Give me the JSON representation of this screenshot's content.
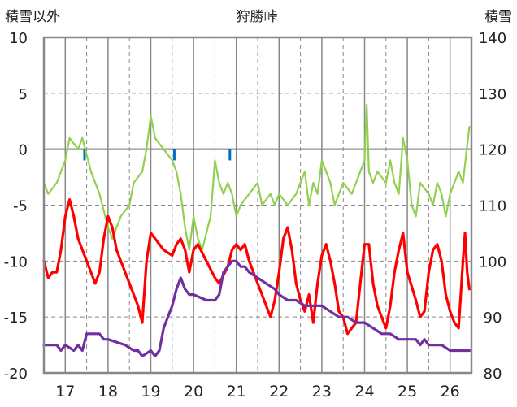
{
  "chart_data": {
    "type": "line",
    "title": "狩勝峠",
    "left_axis_label": "積雪以外",
    "right_axis_label": "積雪",
    "ylim_left": [
      -20,
      10
    ],
    "ylim_right": [
      80,
      140
    ],
    "left_ticks": [
      "10",
      "5",
      "0",
      "-5",
      "-10",
      "-15",
      "-20"
    ],
    "right_ticks": [
      "140",
      "130",
      "120",
      "110",
      "100",
      "90",
      "80"
    ],
    "x_labels": [
      "17",
      "18",
      "19",
      "20",
      "21",
      "22",
      "23",
      "24",
      "25",
      "26"
    ],
    "xlim": [
      16.5,
      26.5
    ],
    "grid": true,
    "colors": {
      "temperature": "#ff0000",
      "green_series": "#92d050",
      "snow_depth": "#7030a0",
      "bars": "#0070c0",
      "grid": "#888888",
      "frame": "#888888",
      "zero_line": "#777777"
    },
    "series": [
      {
        "key": "green",
        "axis": "left",
        "color": "#92d050",
        "points": [
          [
            16.5,
            -3
          ],
          [
            16.6,
            -4
          ],
          [
            16.8,
            -3
          ],
          [
            16.9,
            -2
          ],
          [
            17.0,
            -1
          ],
          [
            17.1,
            1
          ],
          [
            17.3,
            0
          ],
          [
            17.4,
            1
          ],
          [
            17.6,
            -2
          ],
          [
            17.8,
            -4
          ],
          [
            18.0,
            -7
          ],
          [
            18.1,
            -8
          ],
          [
            18.2,
            -7
          ],
          [
            18.3,
            -6
          ],
          [
            18.5,
            -5
          ],
          [
            18.6,
            -3
          ],
          [
            18.8,
            -2
          ],
          [
            18.9,
            0
          ],
          [
            19.0,
            3
          ],
          [
            19.1,
            1
          ],
          [
            19.3,
            0
          ],
          [
            19.5,
            -1
          ],
          [
            19.6,
            -2
          ],
          [
            19.7,
            -4
          ],
          [
            19.8,
            -7
          ],
          [
            19.9,
            -9
          ],
          [
            20.0,
            -6
          ],
          [
            20.1,
            -8
          ],
          [
            20.2,
            -9
          ],
          [
            20.4,
            -6
          ],
          [
            20.5,
            -1
          ],
          [
            20.6,
            -3
          ],
          [
            20.7,
            -4
          ],
          [
            20.8,
            -3
          ],
          [
            20.9,
            -4
          ],
          [
            21.0,
            -6
          ],
          [
            21.1,
            -5
          ],
          [
            21.3,
            -4
          ],
          [
            21.5,
            -3
          ],
          [
            21.6,
            -5
          ],
          [
            21.8,
            -4
          ],
          [
            21.9,
            -5
          ],
          [
            22.0,
            -4
          ],
          [
            22.2,
            -5
          ],
          [
            22.4,
            -4
          ],
          [
            22.5,
            -3
          ],
          [
            22.6,
            -2
          ],
          [
            22.7,
            -5
          ],
          [
            22.8,
            -3
          ],
          [
            22.9,
            -4
          ],
          [
            23.0,
            -1
          ],
          [
            23.1,
            -2
          ],
          [
            23.2,
            -3
          ],
          [
            23.3,
            -5
          ],
          [
            23.5,
            -3
          ],
          [
            23.7,
            -4
          ],
          [
            23.8,
            -3
          ],
          [
            23.9,
            -2
          ],
          [
            24.0,
            -1
          ],
          [
            24.05,
            4
          ],
          [
            24.1,
            -2
          ],
          [
            24.2,
            -3
          ],
          [
            24.3,
            -2
          ],
          [
            24.5,
            -3
          ],
          [
            24.6,
            -1
          ],
          [
            24.7,
            -3
          ],
          [
            24.8,
            -4
          ],
          [
            24.9,
            1
          ],
          [
            25.0,
            -1
          ],
          [
            25.1,
            -5
          ],
          [
            25.2,
            -6
          ],
          [
            25.3,
            -3
          ],
          [
            25.5,
            -4
          ],
          [
            25.6,
            -5
          ],
          [
            25.7,
            -3
          ],
          [
            25.8,
            -4
          ],
          [
            25.9,
            -6
          ],
          [
            26.0,
            -4
          ],
          [
            26.1,
            -3
          ],
          [
            26.2,
            -2
          ],
          [
            26.3,
            -3
          ],
          [
            26.45,
            2
          ]
        ]
      },
      {
        "key": "temperature",
        "axis": "left",
        "color": "#ff0000",
        "points": [
          [
            16.5,
            -10
          ],
          [
            16.6,
            -11.5
          ],
          [
            16.7,
            -11
          ],
          [
            16.8,
            -11
          ],
          [
            16.9,
            -9
          ],
          [
            17.0,
            -6
          ],
          [
            17.1,
            -4.5
          ],
          [
            17.2,
            -6
          ],
          [
            17.3,
            -8
          ],
          [
            17.5,
            -10
          ],
          [
            17.6,
            -11
          ],
          [
            17.7,
            -12
          ],
          [
            17.8,
            -11
          ],
          [
            17.9,
            -8
          ],
          [
            18.0,
            -6
          ],
          [
            18.1,
            -7
          ],
          [
            18.2,
            -9
          ],
          [
            18.4,
            -11
          ],
          [
            18.6,
            -13
          ],
          [
            18.7,
            -14
          ],
          [
            18.8,
            -15.5
          ],
          [
            18.9,
            -10
          ],
          [
            19.0,
            -7.5
          ],
          [
            19.1,
            -8
          ],
          [
            19.3,
            -9
          ],
          [
            19.5,
            -9.5
          ],
          [
            19.6,
            -8.5
          ],
          [
            19.7,
            -8
          ],
          [
            19.8,
            -9
          ],
          [
            19.9,
            -11
          ],
          [
            20.0,
            -9
          ],
          [
            20.1,
            -8.5
          ],
          [
            20.3,
            -10
          ],
          [
            20.5,
            -11.5
          ],
          [
            20.6,
            -12
          ],
          [
            20.8,
            -10.5
          ],
          [
            20.9,
            -9
          ],
          [
            21.0,
            -8.5
          ],
          [
            21.1,
            -9
          ],
          [
            21.2,
            -8.5
          ],
          [
            21.3,
            -10
          ],
          [
            21.5,
            -12
          ],
          [
            21.6,
            -13
          ],
          [
            21.7,
            -14
          ],
          [
            21.8,
            -15
          ],
          [
            21.9,
            -13.5
          ],
          [
            22.0,
            -11
          ],
          [
            22.1,
            -8
          ],
          [
            22.2,
            -7
          ],
          [
            22.3,
            -9
          ],
          [
            22.4,
            -12
          ],
          [
            22.5,
            -13.5
          ],
          [
            22.6,
            -14.5
          ],
          [
            22.7,
            -13
          ],
          [
            22.8,
            -15.5
          ],
          [
            22.9,
            -12
          ],
          [
            23.0,
            -9.5
          ],
          [
            23.1,
            -8.5
          ],
          [
            23.2,
            -10
          ],
          [
            23.3,
            -12
          ],
          [
            23.4,
            -14.5
          ],
          [
            23.5,
            -15
          ],
          [
            23.6,
            -16.5
          ],
          [
            23.7,
            -16
          ],
          [
            23.8,
            -15.5
          ],
          [
            23.9,
            -12
          ],
          [
            24.0,
            -8.5
          ],
          [
            24.1,
            -8.5
          ],
          [
            24.2,
            -12
          ],
          [
            24.3,
            -14
          ],
          [
            24.4,
            -15
          ],
          [
            24.5,
            -16
          ],
          [
            24.6,
            -14
          ],
          [
            24.7,
            -11
          ],
          [
            24.8,
            -9
          ],
          [
            24.9,
            -7.5
          ],
          [
            25.0,
            -11
          ],
          [
            25.2,
            -13.5
          ],
          [
            25.3,
            -15
          ],
          [
            25.4,
            -14.5
          ],
          [
            25.5,
            -11
          ],
          [
            25.6,
            -9
          ],
          [
            25.7,
            -8.5
          ],
          [
            25.8,
            -10
          ],
          [
            25.9,
            -13
          ],
          [
            26.0,
            -14.5
          ],
          [
            26.1,
            -15.5
          ],
          [
            26.2,
            -16
          ],
          [
            26.3,
            -10
          ],
          [
            26.35,
            -7.5
          ],
          [
            26.4,
            -11
          ],
          [
            26.45,
            -12.5
          ]
        ]
      },
      {
        "key": "snow_depth",
        "axis": "right",
        "color": "#7030a0",
        "points": [
          [
            16.5,
            85
          ],
          [
            16.8,
            85
          ],
          [
            16.9,
            84
          ],
          [
            17.0,
            85
          ],
          [
            17.2,
            84
          ],
          [
            17.3,
            85
          ],
          [
            17.4,
            84
          ],
          [
            17.5,
            87
          ],
          [
            17.8,
            87
          ],
          [
            17.9,
            86
          ],
          [
            18.0,
            86
          ],
          [
            18.4,
            85
          ],
          [
            18.6,
            84
          ],
          [
            18.7,
            84
          ],
          [
            18.8,
            83
          ],
          [
            19.0,
            84
          ],
          [
            19.1,
            83
          ],
          [
            19.2,
            84
          ],
          [
            19.3,
            88
          ],
          [
            19.4,
            90
          ],
          [
            19.5,
            92
          ],
          [
            19.6,
            95
          ],
          [
            19.7,
            97
          ],
          [
            19.8,
            95
          ],
          [
            19.9,
            94
          ],
          [
            20.0,
            94
          ],
          [
            20.3,
            93
          ],
          [
            20.5,
            93
          ],
          [
            20.6,
            94
          ],
          [
            20.7,
            98
          ],
          [
            20.8,
            99
          ],
          [
            20.9,
            100
          ],
          [
            21.0,
            100
          ],
          [
            21.1,
            99
          ],
          [
            21.2,
            99
          ],
          [
            21.3,
            98
          ],
          [
            21.5,
            97
          ],
          [
            21.7,
            96
          ],
          [
            21.9,
            95
          ],
          [
            22.0,
            94
          ],
          [
            22.2,
            93
          ],
          [
            22.4,
            93
          ],
          [
            22.6,
            92
          ],
          [
            22.8,
            92
          ],
          [
            23.0,
            92
          ],
          [
            23.2,
            91
          ],
          [
            23.4,
            90
          ],
          [
            23.6,
            90
          ],
          [
            23.8,
            89
          ],
          [
            24.0,
            89
          ],
          [
            24.2,
            88
          ],
          [
            24.4,
            87
          ],
          [
            24.6,
            87
          ],
          [
            24.8,
            86
          ],
          [
            25.0,
            86
          ],
          [
            25.2,
            86
          ],
          [
            25.3,
            85
          ],
          [
            25.4,
            86
          ],
          [
            25.5,
            85
          ],
          [
            25.6,
            85
          ],
          [
            25.8,
            85
          ],
          [
            26.0,
            84
          ],
          [
            26.2,
            84
          ],
          [
            26.45,
            84
          ]
        ]
      }
    ],
    "bars": [
      {
        "x": 17.45,
        "value": -1
      },
      {
        "x": 19.55,
        "value": -1
      },
      {
        "x": 20.85,
        "value": -1
      }
    ]
  }
}
